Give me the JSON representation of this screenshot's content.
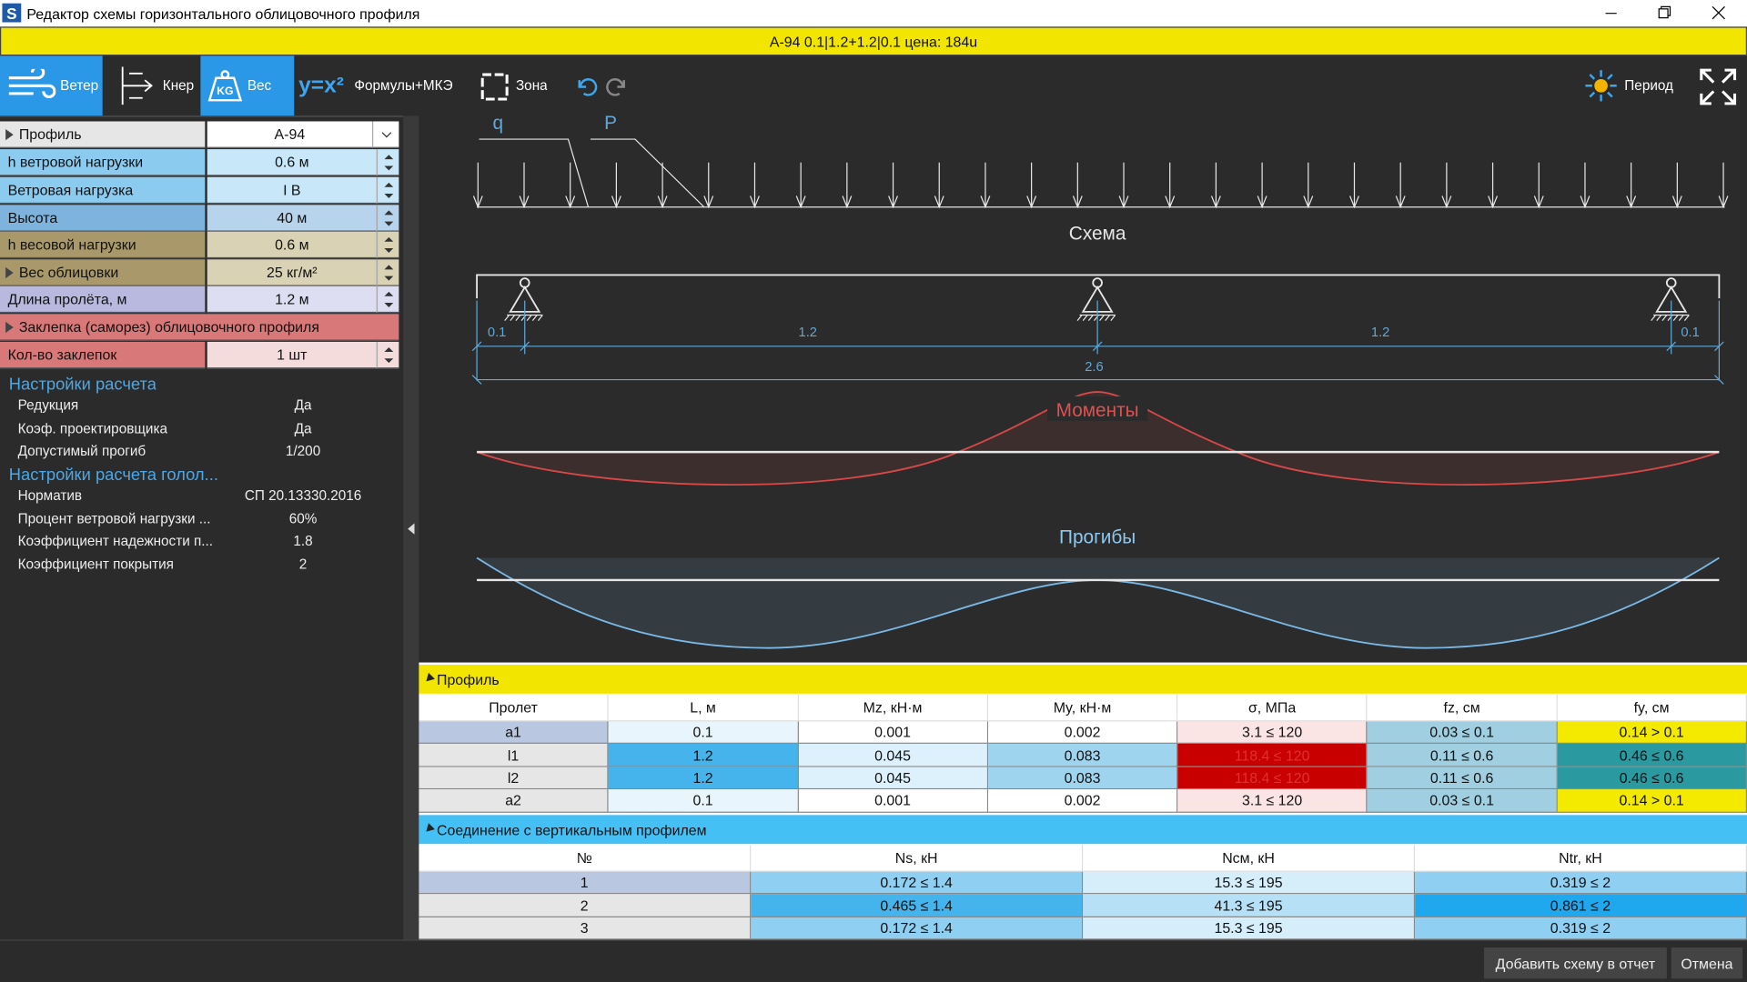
{
  "window": {
    "app_icon": "S",
    "title": "Редактор схемы горизонтального облицовочного профиля"
  },
  "header_bar": "А-94 0.1|1.2+1.2|0.1 цена: 184u",
  "toolbar": {
    "wind": "Ветер",
    "kner": "Кнер",
    "weight_icon": "KG",
    "weight": "Вес",
    "formula_icon": "y=x²",
    "formula": "Формулы+МКЭ",
    "zone": "Зона",
    "period": "Период"
  },
  "properties": [
    {
      "label": "Профиль",
      "value": "А-94"
    },
    {
      "label": "h ветровой нагрузки",
      "value": "0.6 м"
    },
    {
      "label": "Ветровая нагрузка",
      "value": "I В"
    },
    {
      "label": "Высота",
      "value": "40 м"
    },
    {
      "label": "h весовой нагрузки",
      "value": "0.6 м"
    },
    {
      "label": "Вес облицовки",
      "value": "25 кг/м²"
    },
    {
      "label": "Длина пролёта, м",
      "value": "1.2 м"
    },
    {
      "label": "Заклепка (саморез) облицовочного профиля"
    },
    {
      "label": "Кол-во заклепок",
      "value": "1 шт"
    }
  ],
  "calc_settings": {
    "title": "Настройки расчета",
    "rows": [
      {
        "label": "Редукция",
        "value": "Да"
      },
      {
        "label": "Коэф. проектировщика",
        "value": "Да"
      },
      {
        "label": "Допустимый прогиб",
        "value": "1/200"
      }
    ]
  },
  "ice_settings": {
    "title": "Настройки расчета голол...",
    "rows": [
      {
        "label": "Норматив",
        "value": "СП 20.13330.2016"
      },
      {
        "label": "Процент ветровой нагрузки ...",
        "value": "60%"
      },
      {
        "label": "Коэффициент надежности п...",
        "value": "1.8"
      },
      {
        "label": "Коэффициент покрытия",
        "value": "2"
      }
    ]
  },
  "diagram": {
    "q_label": "q",
    "p_label": "P",
    "scheme_title": "Схема",
    "dimensions": [
      "0.1",
      "1.2",
      "1.2",
      "0.1"
    ],
    "total": "2.6",
    "moments_title": "Моменты",
    "deflections_title": "Прогибы"
  },
  "profile_table": {
    "title": "Профиль",
    "columns": [
      "Пролет",
      "L, м",
      "Mz, кН·м",
      "My, кН·м",
      "σ, МПа",
      "fz, см",
      "fy, см"
    ],
    "rows": [
      [
        "a1",
        "0.1",
        "0.001",
        "0.002",
        "3.1 ≤ 120",
        "0.03 ≤ 0.1",
        "0.14 > 0.1"
      ],
      [
        "l1",
        "1.2",
        "0.045",
        "0.083",
        "118.4 ≤ 120",
        "0.11 ≤ 0.6",
        "0.46 ≤ 0.6"
      ],
      [
        "l2",
        "1.2",
        "0.045",
        "0.083",
        "118.4 ≤ 120",
        "0.11 ≤ 0.6",
        "0.46 ≤ 0.6"
      ],
      [
        "a2",
        "0.1",
        "0.001",
        "0.002",
        "3.1 ≤ 120",
        "0.03 ≤ 0.1",
        "0.14 > 0.1"
      ]
    ]
  },
  "connection_table": {
    "title": "Соединение с вертикальным профилем",
    "columns": [
      "№",
      "Ns, кН",
      "Nсм, кН",
      "Ntr, кН"
    ],
    "rows": [
      [
        "1",
        "0.172 ≤ 1.4",
        "15.3 ≤ 195",
        "0.319 ≤ 2"
      ],
      [
        "2",
        "0.465 ≤ 1.4",
        "41.3 ≤ 195",
        "0.861 ≤ 2"
      ],
      [
        "3",
        "0.172 ≤ 1.4",
        "15.3 ≤ 195",
        "0.319 ≤ 2"
      ]
    ]
  },
  "buttons": {
    "add": "Добавить схему в отчет",
    "cancel": "Отмена"
  }
}
